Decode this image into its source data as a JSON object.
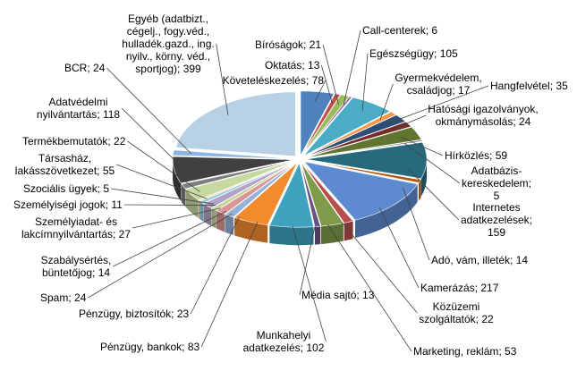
{
  "chart_data": {
    "type": "pie3d",
    "categories": [
      "Követeléskezelés",
      "Oktatás",
      "Bíróságok",
      "Call-centerek",
      "Egészségügy",
      "Gyermekvédelem, családjog",
      "Hangfelvétel",
      "Hatósági igazolványok, okmánymásolás",
      "Hírközlés",
      "Adatbázis-kereskedelem",
      "Internetes adatkezelések",
      "Adó, vám, illeték",
      "Kamerázás",
      "Közüzemi szolgáltatók",
      "Marketing, reklám",
      "Média sajtó",
      "Munkahelyi adatkezelés",
      "Pénzügy, bankok",
      "Pénzügy, biztosítók",
      "Spam",
      "Szabálysértés, büntetőjog",
      "Személyiadat- és lakcímnyilvántartás",
      "Személyiségi jogok",
      "Szociális ügyek",
      "Társasház, lakásszövetkezet",
      "Termékbemutatók",
      "Adatvédelmi nyilvántartás",
      "BCR",
      "Egyéb (adatbizt., cégelj., fogy.véd., hulladék.gazd., ing. nyilv., körny. véd., sportjog)"
    ],
    "values": [
      78,
      13,
      21,
      6,
      105,
      17,
      35,
      24,
      59,
      5,
      159,
      14,
      217,
      22,
      53,
      13,
      102,
      83,
      23,
      24,
      14,
      27,
      11,
      5,
      55,
      22,
      118,
      24,
      399
    ],
    "colors": [
      "#4F81BD",
      "#C0504D",
      "#9BBB59",
      "#8064A2",
      "#4BACC6",
      "#F79646",
      "#2C4D75",
      "#772C2A",
      "#5F7530",
      "#4D3B62",
      "#276A7C",
      "#B65708",
      "#5E8ACF",
      "#B84E4B",
      "#7F9A48",
      "#6A5284",
      "#3FA3BF",
      "#F28A2E",
      "#95B3D7",
      "#D99694",
      "#C3D69B",
      "#B3A2C7",
      "#93CDDD",
      "#FAC090",
      "#C6D9A0",
      "#7F7F7F",
      "#404040",
      "#8EB4E3",
      "#B7D0E3"
    ],
    "label_separator": "; "
  }
}
